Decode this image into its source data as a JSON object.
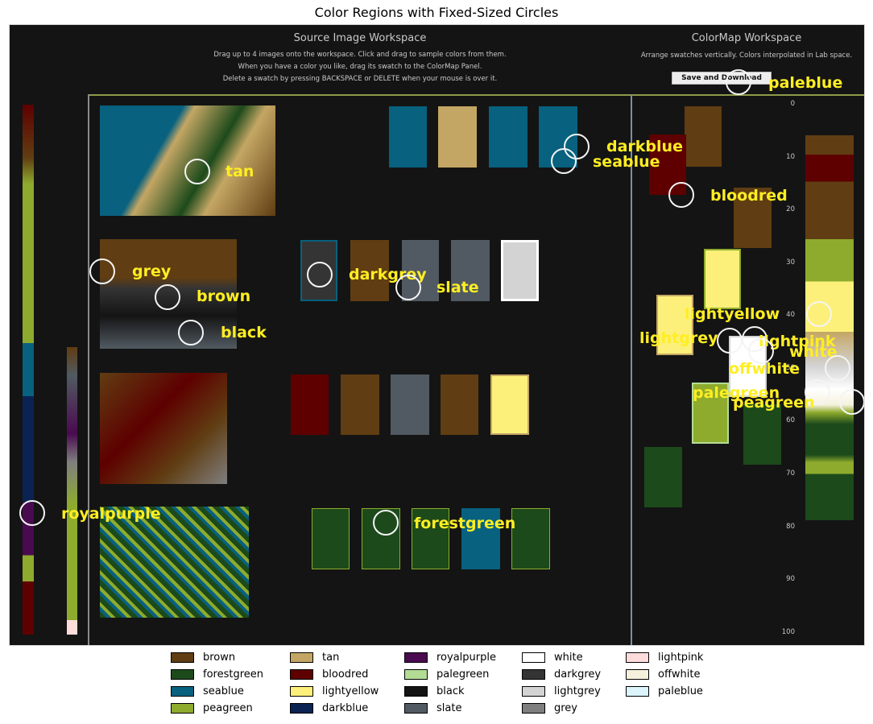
{
  "figure_title": "Color Regions with Fixed-Sized Circles",
  "source_workspace": {
    "title": "Source Image Workspace",
    "lines": [
      "Drag up to 4 images onto the workspace.  Click and drag to sample colors from them.",
      "When you have a color you like, drag its swatch to the ColorMap Panel.",
      "Delete a swatch by pressing BACKSPACE or DELETE when your mouse is over it."
    ]
  },
  "colormap_workspace": {
    "title": "ColorMap Workspace",
    "line": "Arrange swatches vertically. Colors interpolated in Lab space.",
    "button_label": "Save and Download",
    "ticks": [
      "0",
      "10",
      "20",
      "30",
      "40",
      "50",
      "60",
      "70",
      "80",
      "90",
      "100"
    ]
  },
  "regions": [
    {
      "name": "paleblue",
      "label": "paleblue"
    },
    {
      "name": "darkblue",
      "label": "darkblue"
    },
    {
      "name": "seablue",
      "label": "seablue"
    },
    {
      "name": "tan",
      "label": "tan"
    },
    {
      "name": "bloodred",
      "label": "bloodred"
    },
    {
      "name": "grey",
      "label": "grey"
    },
    {
      "name": "darkgrey",
      "label": "darkgrey"
    },
    {
      "name": "slate",
      "label": "slate"
    },
    {
      "name": "brown",
      "label": "brown"
    },
    {
      "name": "black",
      "label": "black"
    },
    {
      "name": "lightyellow",
      "label": "lightyellow"
    },
    {
      "name": "lightgrey",
      "label": "lightgrey"
    },
    {
      "name": "lightpink",
      "label": "lightpink"
    },
    {
      "name": "white",
      "label": "white"
    },
    {
      "name": "offwhite",
      "label": "offwhite"
    },
    {
      "name": "palegreen",
      "label": "palegreen"
    },
    {
      "name": "peagreen",
      "label": "peagreen"
    },
    {
      "name": "royalpurple",
      "label": "royalpurple"
    },
    {
      "name": "forestgreen",
      "label": "forestgreen"
    }
  ],
  "legend": [
    {
      "name": "brown",
      "color": "#603d12"
    },
    {
      "name": "forestgreen",
      "color": "#1d4a1b"
    },
    {
      "name": "seablue",
      "color": "#07617f"
    },
    {
      "name": "peagreen",
      "color": "#8eab2d"
    },
    {
      "name": "tan",
      "color": "#c4a664"
    },
    {
      "name": "bloodred",
      "color": "#5e0000"
    },
    {
      "name": "lightyellow",
      "color": "#fcf07a"
    },
    {
      "name": "darkblue",
      "color": "#0a2352"
    },
    {
      "name": "royalpurple",
      "color": "#4a0a50"
    },
    {
      "name": "palegreen",
      "color": "#b3dc95"
    },
    {
      "name": "black",
      "color": "#141414"
    },
    {
      "name": "slate",
      "color": "#515a62"
    },
    {
      "name": "white",
      "color": "#ffffff"
    },
    {
      "name": "darkgrey",
      "color": "#343434"
    },
    {
      "name": "lightgrey",
      "color": "#d3d3d3"
    },
    {
      "name": "grey",
      "color": "#7f7f7f"
    },
    {
      "name": "lightpink",
      "color": "#ffdcdc"
    },
    {
      "name": "offwhite",
      "color": "#f6f1dd"
    },
    {
      "name": "paleblue",
      "color": "#dcf4fc"
    }
  ]
}
